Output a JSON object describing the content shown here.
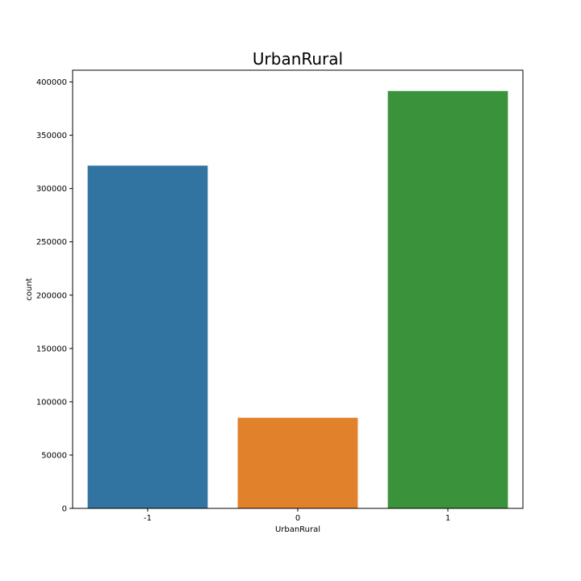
{
  "chart_data": {
    "type": "bar",
    "title": "UrbanRural",
    "xlabel": "UrbanRural",
    "ylabel": "count",
    "categories": [
      "-1",
      "0",
      "1"
    ],
    "values": [
      321500,
      85000,
      391500
    ],
    "colors": [
      "#3274a1",
      "#e1812c",
      "#3a923a"
    ],
    "ylim": [
      0,
      411000
    ],
    "yticks": [
      0,
      50000,
      100000,
      150000,
      200000,
      250000,
      300000,
      350000,
      400000
    ],
    "ytick_labels": [
      "0",
      "50000",
      "100000",
      "150000",
      "200000",
      "250000",
      "300000",
      "350000",
      "400000"
    ],
    "grid": false,
    "legend": false
  }
}
